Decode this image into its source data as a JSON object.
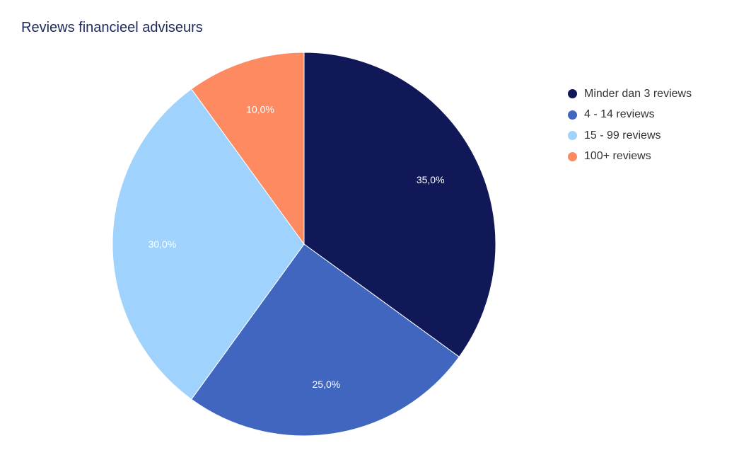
{
  "chart_data": {
    "type": "pie",
    "title": "Reviews financieel adviseurs",
    "legend_position": "right",
    "slices": [
      {
        "name": "Minder dan 3 reviews",
        "value": 35.0,
        "label": "35,0%",
        "color": "#111858"
      },
      {
        "name": "4 - 14 reviews",
        "value": 25.0,
        "label": "25,0%",
        "color": "#4166c0"
      },
      {
        "name": "15 - 99 reviews",
        "value": 30.0,
        "label": "30,0%",
        "color": "#9fd3fd"
      },
      {
        "name": "100+ reviews",
        "value": 10.0,
        "label": "10,0%",
        "color": "#fe8a62"
      }
    ]
  }
}
